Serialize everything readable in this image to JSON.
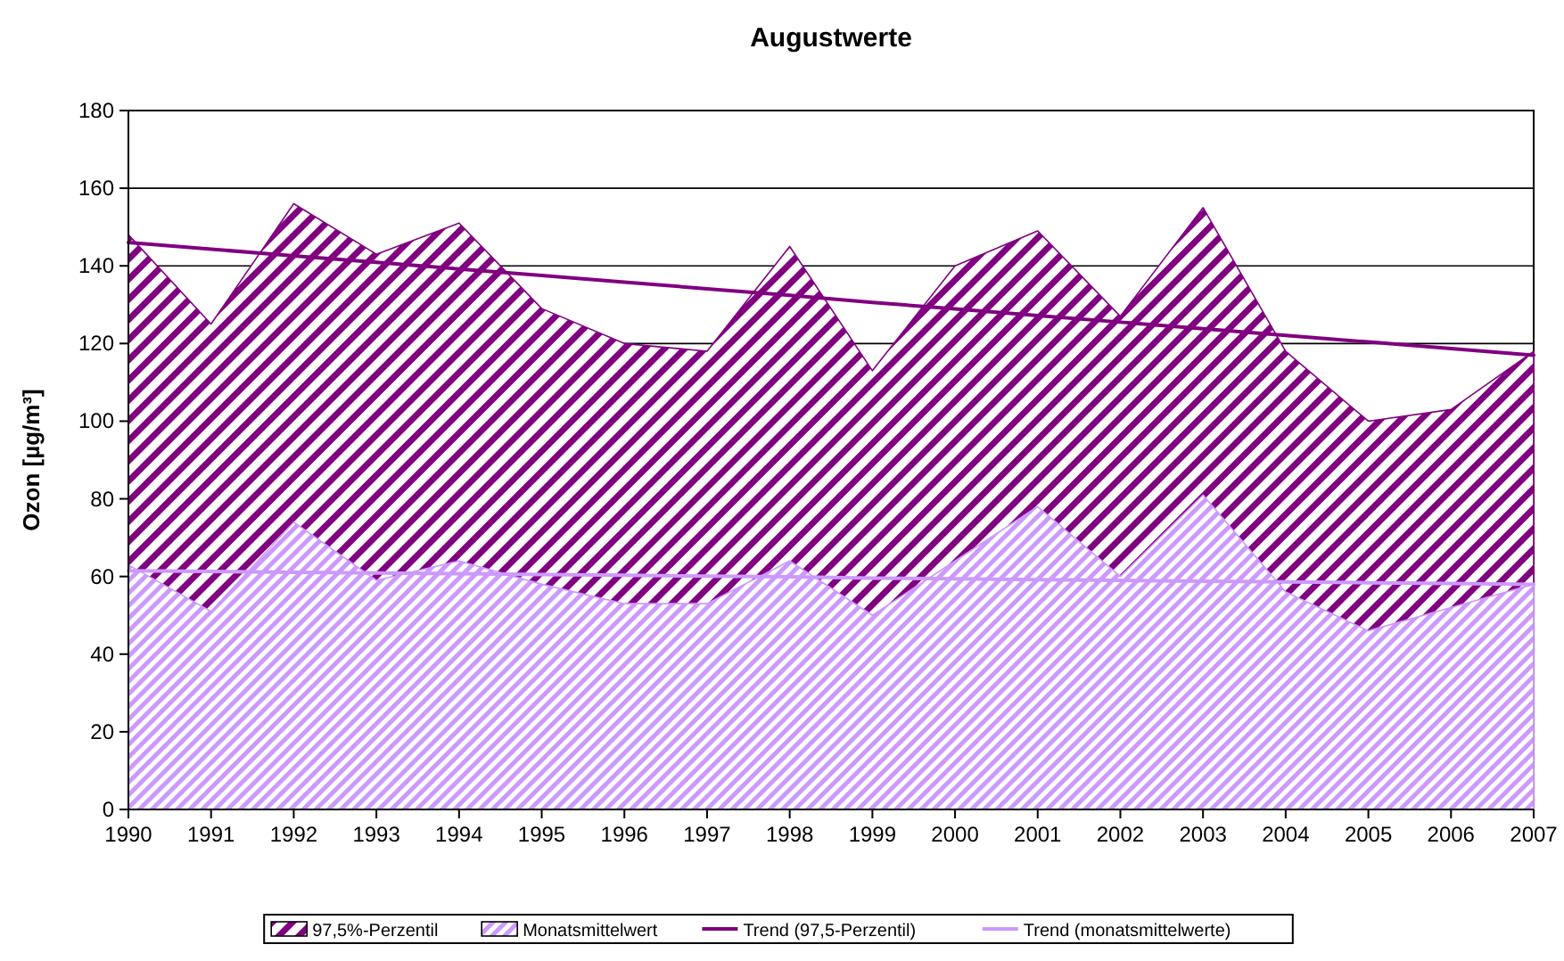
{
  "chart_data": {
    "type": "area",
    "title": "Augustwerte",
    "ylabel": "Ozon [µg/m³]",
    "x": [
      1990,
      1991,
      1992,
      1993,
      1994,
      1995,
      1996,
      1997,
      1998,
      1999,
      2000,
      2001,
      2002,
      2003,
      2004,
      2005,
      2006,
      2007
    ],
    "xlim": [
      1990,
      2007
    ],
    "xticks": [
      1990,
      1991,
      1992,
      1993,
      1994,
      1995,
      1996,
      1997,
      1998,
      1999,
      2000,
      2001,
      2002,
      2003,
      2004,
      2005,
      2006,
      2007
    ],
    "ylim": [
      0,
      180
    ],
    "yticks": [
      0,
      20,
      40,
      60,
      80,
      100,
      120,
      140,
      160,
      180
    ],
    "grid": "y",
    "legend": "bottom",
    "series": [
      {
        "name": "97,5%-Perzentil",
        "color": "#800080",
        "values": [
          148,
          125,
          156,
          143,
          151,
          129,
          120,
          118,
          145,
          113,
          140,
          149,
          127,
          155,
          118,
          100,
          103,
          118
        ]
      },
      {
        "name": "Monatsmittelwert",
        "color": "#cc99ff",
        "values": [
          63,
          51,
          74,
          59,
          64,
          58,
          53,
          53,
          64,
          50,
          64,
          78,
          60,
          81,
          56,
          46,
          52,
          58
        ]
      },
      {
        "name": "Trend (97,5-Perzentil)",
        "type": "line",
        "color": "#800080",
        "values": [
          146,
          144.3,
          142.6,
          140.9,
          139.2,
          137.5,
          135.8,
          134.1,
          132.4,
          130.6,
          128.9,
          127.2,
          125.5,
          123.8,
          122.1,
          120.4,
          118.7,
          117
        ]
      },
      {
        "name": "Trend (monatsmittelwerte)",
        "type": "line",
        "color": "#cc99ff",
        "values": [
          61.5,
          61.3,
          61.1,
          60.9,
          60.7,
          60.5,
          60.3,
          60.1,
          59.9,
          59.6,
          59.4,
          59.2,
          59,
          58.8,
          58.6,
          58.4,
          58.2,
          58
        ]
      }
    ]
  }
}
